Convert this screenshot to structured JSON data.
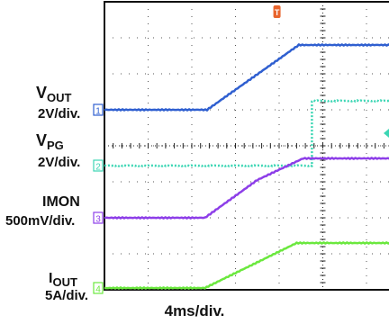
{
  "chart_data": {
    "type": "line",
    "title": "",
    "xlabel": "4ms/div.",
    "ylabel": "",
    "grid": true,
    "x_divisions": 10,
    "y_divisions": 8,
    "trigger_marker": "T",
    "series": [
      {
        "channel": "1",
        "name_main": "V",
        "name_sub": "OUT",
        "scale": "2V/div.",
        "color": "#2f5fd0",
        "ground_div": 5.0,
        "points": [
          [
            0,
            0.0
          ],
          [
            2.35,
            0.0
          ],
          [
            4.45,
            1.8
          ],
          [
            10,
            1.8
          ]
        ]
      },
      {
        "channel": "2",
        "name_main": "V",
        "name_sub": "PG",
        "scale": "2V/div.",
        "color": "#3cd6b4",
        "ground_div": 3.45,
        "points": [
          [
            0,
            0.0
          ],
          [
            4.75,
            0.0
          ],
          [
            4.75,
            1.8
          ],
          [
            10,
            1.8
          ]
        ]
      },
      {
        "channel": "3",
        "name_main": "IMON",
        "name_sub": "",
        "scale": "500mV/div.",
        "color": "#8d3ee8",
        "ground_div": 2.0,
        "points": [
          [
            0,
            0.0
          ],
          [
            2.3,
            0.0
          ],
          [
            3.5,
            1.05
          ],
          [
            4.55,
            1.65
          ],
          [
            10,
            1.65
          ]
        ]
      },
      {
        "channel": "4",
        "name_main": "I",
        "name_sub": "OUT",
        "scale": "5A/div.",
        "color": "#6be83e",
        "ground_div": 0.05,
        "points": [
          [
            0,
            0.0
          ],
          [
            2.3,
            0.0
          ],
          [
            4.4,
            1.25
          ],
          [
            10,
            1.25
          ]
        ]
      }
    ]
  }
}
